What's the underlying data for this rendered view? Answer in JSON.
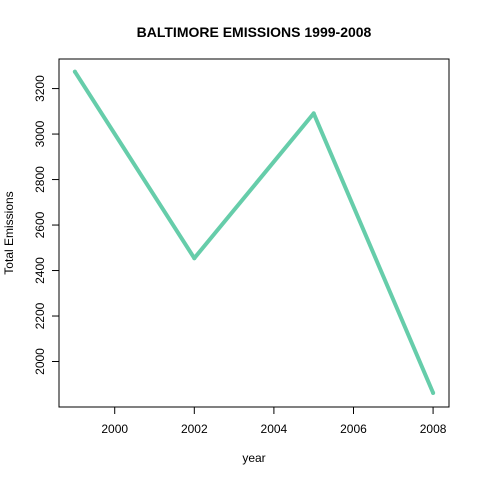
{
  "chart_data": {
    "type": "line",
    "title": "BALTIMORE EMISSIONS 1999-2008",
    "xlabel": "year",
    "ylabel": "Total Emissions",
    "x": [
      1999,
      2002,
      2005,
      2008
    ],
    "series": [
      {
        "values": [
          3274,
          2454,
          3091,
          1862
        ]
      }
    ],
    "xlim": [
      1998.6,
      2008.4
    ],
    "ylim": [
      1800,
      3330
    ],
    "xticks": [
      "2000",
      "2002",
      "2004",
      "2006",
      "2008"
    ],
    "yticks": [
      "2000",
      "2200",
      "2400",
      "2600",
      "2800",
      "3000",
      "3200"
    ],
    "line_color": "#66CDAA",
    "grid": false,
    "legend": "none"
  }
}
